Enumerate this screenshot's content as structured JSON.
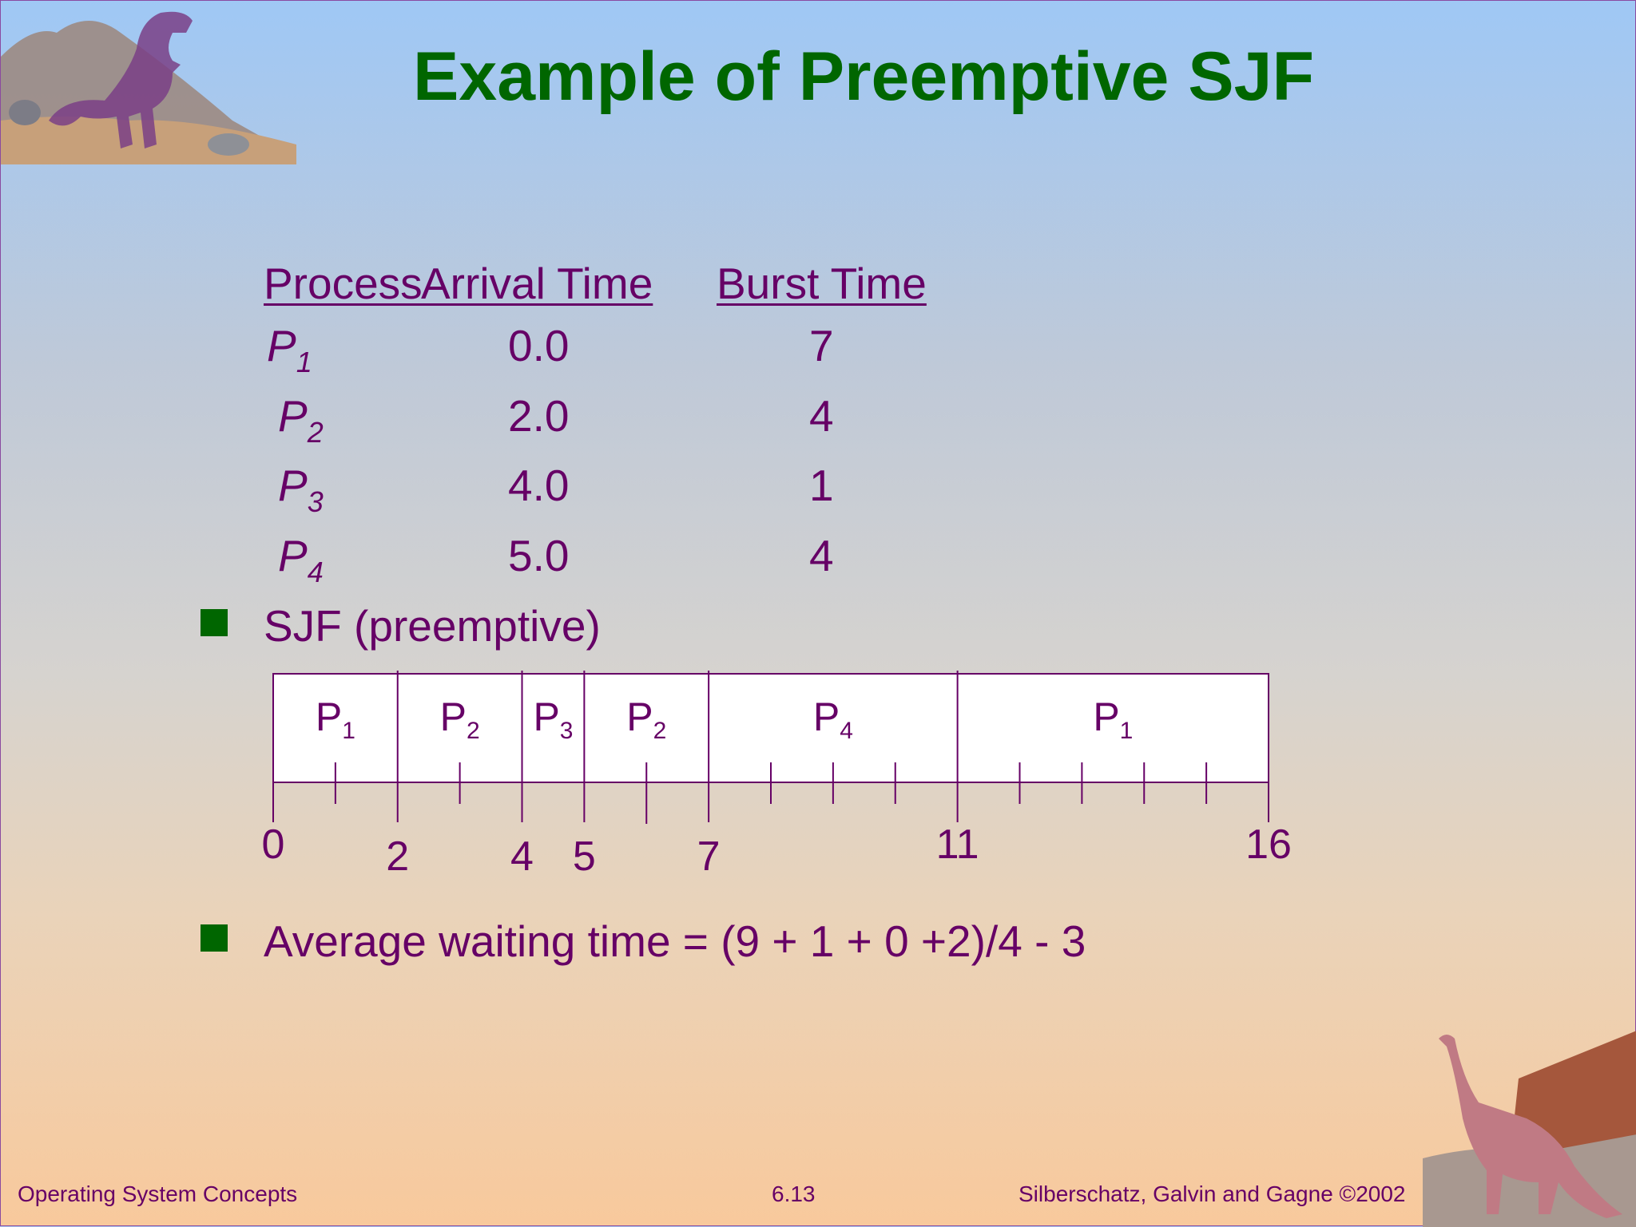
{
  "slide": {
    "title": "Example of Preemptive SJF",
    "table": {
      "headers": {
        "process": "Process",
        "arrival": "Arrival Time",
        "burst": "Burst Time"
      },
      "rows": [
        {
          "p": "P",
          "sub": "1",
          "arrival": "0.0",
          "burst": "7"
        },
        {
          "p": "P",
          "sub": "2",
          "arrival": "2.0",
          "burst": "4"
        },
        {
          "p": "P",
          "sub": "3",
          "arrival": "4.0",
          "burst": "1"
        },
        {
          "p": "P",
          "sub": "4",
          "arrival": "5.0",
          "burst": "4"
        }
      ]
    },
    "bullet1": "SJF (preemptive)",
    "gantt": {
      "segments": [
        {
          "p": "P",
          "sub": "1",
          "start": 0,
          "end": 2
        },
        {
          "p": "P",
          "sub": "2",
          "start": 2,
          "end": 4
        },
        {
          "p": "P",
          "sub": "3",
          "start": 4,
          "end": 5
        },
        {
          "p": "P",
          "sub": "2",
          "start": 5,
          "end": 7
        },
        {
          "p": "P",
          "sub": "4",
          "start": 7,
          "end": 11
        },
        {
          "p": "P",
          "sub": "1",
          "start": 11,
          "end": 16
        }
      ],
      "time_labels": [
        "0",
        "2",
        "4",
        "5",
        "7",
        "11",
        "16"
      ]
    },
    "bullet2": "Average waiting time = (9 + 1 + 0 +2)/4 - 3",
    "footer": {
      "left": "Operating System Concepts",
      "center": "6.13",
      "right": "Silberschatz, Galvin and  Gagne ©2002"
    },
    "colors": {
      "title": "#006600",
      "text": "#660066",
      "bullet": "#006600"
    }
  }
}
